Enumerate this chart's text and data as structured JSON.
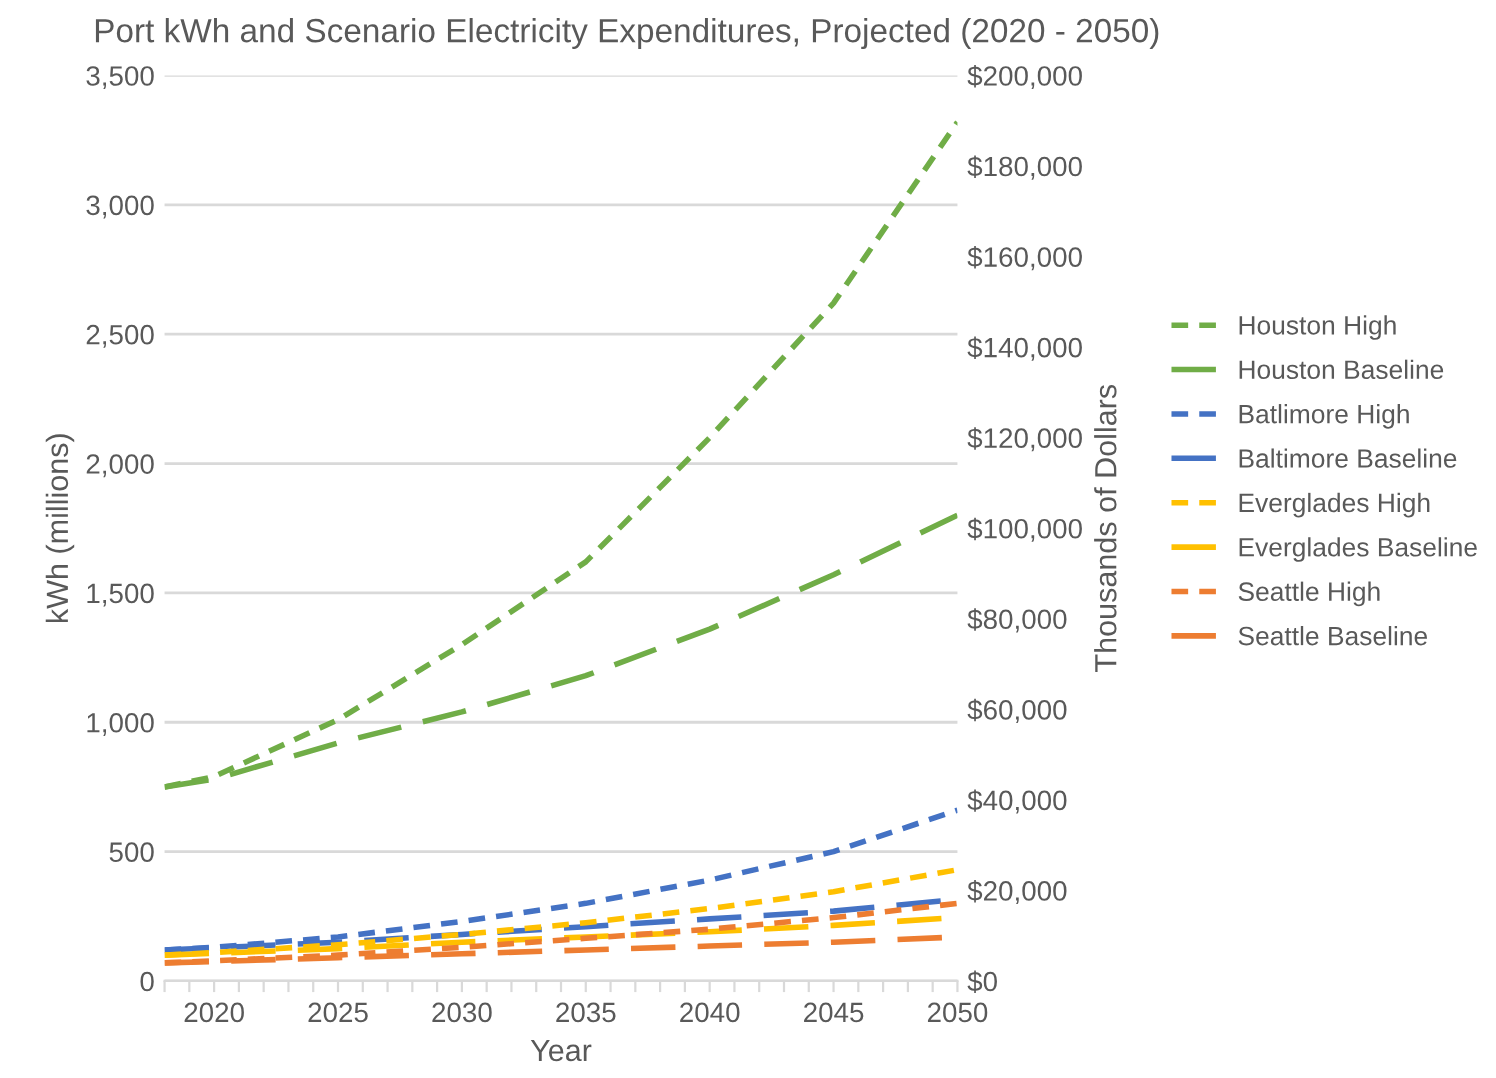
{
  "chart_data": {
    "type": "line",
    "title": "Port kWh and Scenario Electricity Expenditures, Projected (2020 - 2050)",
    "xlabel": "Year",
    "ylabel": "kWh (millions)",
    "y2label": "Thousands of Dollars",
    "x": [
      2018,
      2020,
      2025,
      2030,
      2035,
      2040,
      2045,
      2050
    ],
    "xlim": [
      2018,
      2050
    ],
    "xticks": [
      {
        "value": 2018,
        "label": null
      },
      {
        "value": 2019,
        "label": null
      },
      2020,
      {
        "value": 2021,
        "label": null
      },
      {
        "value": 2022,
        "label": null
      },
      {
        "value": 2023,
        "label": null
      },
      {
        "value": 2024,
        "label": null
      },
      2025,
      {
        "value": 2026,
        "label": null
      },
      {
        "value": 2027,
        "label": null
      },
      {
        "value": 2028,
        "label": null
      },
      {
        "value": 2029,
        "label": null
      },
      2030,
      {
        "value": 2031,
        "label": null
      },
      {
        "value": 2032,
        "label": null
      },
      {
        "value": 2033,
        "label": null
      },
      {
        "value": 2034,
        "label": null
      },
      2035,
      {
        "value": 2036,
        "label": null
      },
      {
        "value": 2037,
        "label": null
      },
      {
        "value": 2038,
        "label": null
      },
      {
        "value": 2039,
        "label": null
      },
      2040,
      {
        "value": 2041,
        "label": null
      },
      {
        "value": 2042,
        "label": null
      },
      {
        "value": 2043,
        "label": null
      },
      {
        "value": 2044,
        "label": null
      },
      2045,
      {
        "value": 2046,
        "label": null
      },
      {
        "value": 2047,
        "label": null
      },
      {
        "value": 2048,
        "label": null
      },
      {
        "value": 2049,
        "label": null
      },
      2050
    ],
    "ylim": [
      0,
      3500
    ],
    "yticks": [
      {
        "value": 0,
        "label": "0"
      },
      {
        "value": 500,
        "label": "500"
      },
      {
        "value": 1000,
        "label": "1,000"
      },
      {
        "value": 1500,
        "label": "1,500"
      },
      {
        "value": 2000,
        "label": "2,000"
      },
      {
        "value": 2500,
        "label": "2,500"
      },
      {
        "value": 3000,
        "label": "3,000"
      },
      {
        "value": 3500,
        "label": "3,500"
      }
    ],
    "y2lim": [
      0,
      200000
    ],
    "y2ticks": [
      {
        "value": 0,
        "label": "$0"
      },
      {
        "value": 20000,
        "label": "$20,000"
      },
      {
        "value": 40000,
        "label": "$40,000"
      },
      {
        "value": 60000,
        "label": "$60,000"
      },
      {
        "value": 80000,
        "label": "$80,000"
      },
      {
        "value": 100000,
        "label": "$100,000"
      },
      {
        "value": 120000,
        "label": "$120,000"
      },
      {
        "value": 140000,
        "label": "$140,000"
      },
      {
        "value": 160000,
        "label": "$160,000"
      },
      {
        "value": 180000,
        "label": "$180,000"
      },
      {
        "value": 200000,
        "label": "$200,000"
      }
    ],
    "grid": "y",
    "legend": "right",
    "marker": "none",
    "series": [
      {
        "name": "Houston High",
        "color": "#70ad47",
        "line_style": "dotted",
        "values": [
          750,
          790,
          1010,
          1300,
          1620,
          2100,
          2620,
          3320
        ]
      },
      {
        "name": "Houston Baseline",
        "color": "#70ad47",
        "line_style": "dashed",
        "values": [
          750,
          780,
          920,
          1040,
          1180,
          1360,
          1570,
          1800
        ]
      },
      {
        "name": "Batlimore High",
        "color": "#4472c4",
        "line_style": "dotted",
        "values": [
          120,
          130,
          170,
          230,
          300,
          390,
          500,
          660
        ]
      },
      {
        "name": "Baltimore Baseline",
        "color": "#4472c4",
        "line_style": "dashed",
        "values": [
          120,
          128,
          150,
          180,
          210,
          240,
          270,
          315
        ]
      },
      {
        "name": "Everglades High",
        "color": "#ffc000",
        "line_style": "dotted",
        "values": [
          100,
          110,
          140,
          180,
          225,
          280,
          345,
          430
        ]
      },
      {
        "name": "Everglades Baseline",
        "color": "#ffc000",
        "line_style": "dashed",
        "values": [
          100,
          107,
          125,
          150,
          170,
          190,
          215,
          245
        ]
      },
      {
        "name": "Seattle High",
        "color": "#ed7d31",
        "line_style": "dotted",
        "values": [
          70,
          78,
          100,
          130,
          165,
          200,
          245,
          300
        ]
      },
      {
        "name": "Seattle Baseline",
        "color": "#ed7d31",
        "line_style": "dashed",
        "values": [
          70,
          75,
          90,
          105,
          120,
          135,
          150,
          170
        ]
      }
    ]
  }
}
